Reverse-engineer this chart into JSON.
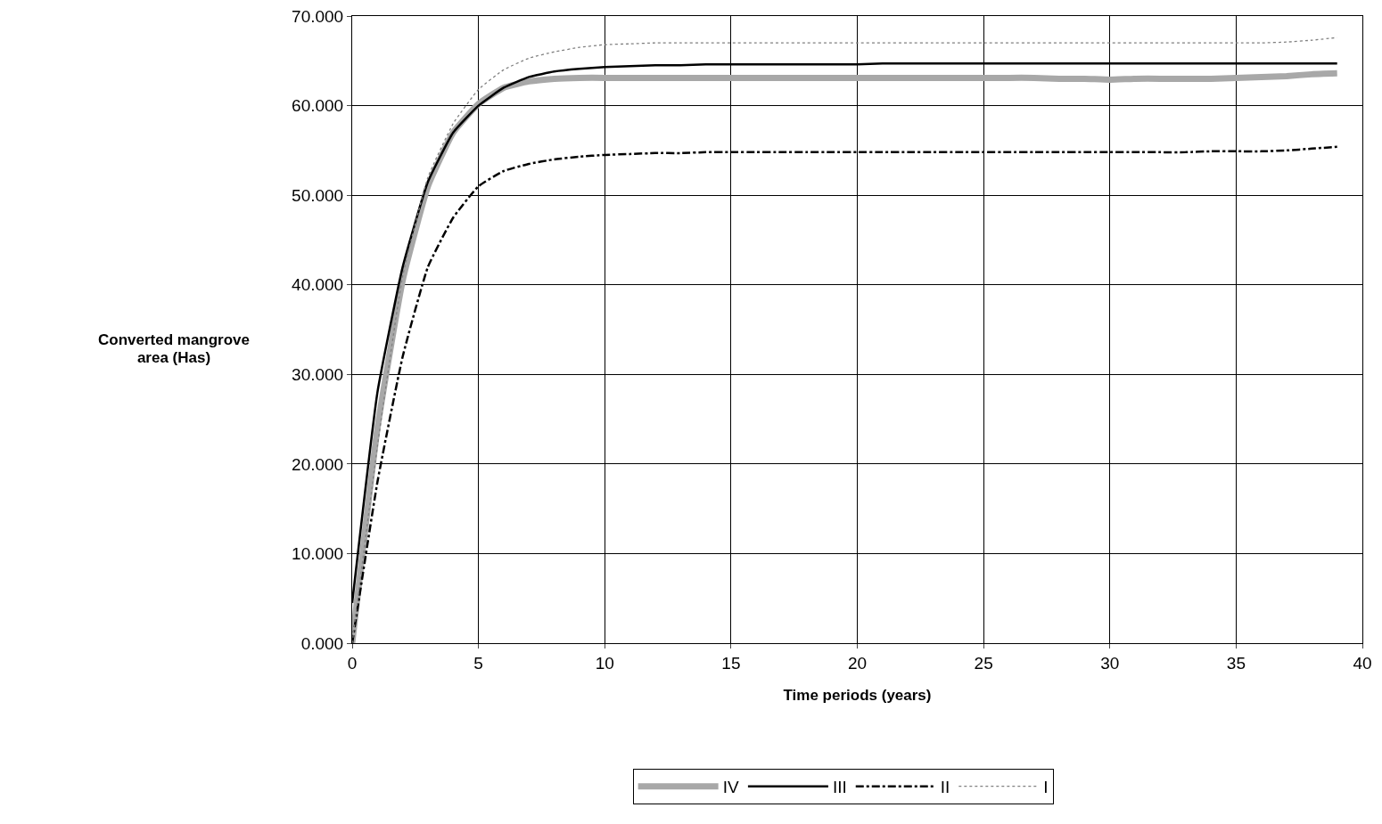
{
  "chart_data": {
    "type": "line",
    "xlabel": "Time periods (years)",
    "ylabel": "Converted mangrove area (Has)",
    "x": [
      0,
      1,
      2,
      3,
      4,
      5,
      6,
      7,
      8,
      9,
      10,
      11,
      12,
      13,
      14,
      15,
      16,
      17,
      18,
      19,
      20,
      21,
      22,
      23,
      24,
      25,
      26,
      27,
      28,
      29,
      30,
      31,
      32,
      33,
      34,
      35,
      36,
      37,
      38,
      39
    ],
    "series": [
      {
        "name": "IV",
        "color": "#a8a8a8",
        "line_style": "solid",
        "values": [
          0,
          24,
          40.5,
          51,
          57,
          60.2,
          62,
          62.7,
          63,
          63.1,
          63.1,
          63.1,
          63.1,
          63.1,
          63.1,
          63.1,
          63.1,
          63.1,
          63.1,
          63.1,
          63.1,
          63.1,
          63.1,
          63.1,
          63.1,
          63.1,
          63.1,
          63.1,
          63,
          63,
          62.9,
          63,
          63,
          63,
          63,
          63.1,
          63.2,
          63.3,
          63.5,
          63.6
        ]
      },
      {
        "name": "III",
        "color": "#000000",
        "line_style": "solid",
        "values": [
          4.5,
          28,
          42,
          51.5,
          57,
          60,
          62,
          63.2,
          63.8,
          64.1,
          64.3,
          64.4,
          64.5,
          64.5,
          64.6,
          64.6,
          64.6,
          64.6,
          64.6,
          64.6,
          64.6,
          64.7,
          64.7,
          64.7,
          64.7,
          64.7,
          64.7,
          64.7,
          64.7,
          64.7,
          64.7,
          64.7,
          64.7,
          64.7,
          64.7,
          64.7,
          64.7,
          64.7,
          64.7,
          64.7
        ]
      },
      {
        "name": "II",
        "color": "#000000",
        "line_style": "dashed",
        "values": [
          0,
          18,
          32,
          42,
          47.5,
          51,
          52.7,
          53.5,
          54,
          54.3,
          54.5,
          54.6,
          54.7,
          54.7,
          54.8,
          54.8,
          54.8,
          54.8,
          54.8,
          54.8,
          54.8,
          54.8,
          54.8,
          54.8,
          54.8,
          54.8,
          54.8,
          54.8,
          54.8,
          54.8,
          54.8,
          54.8,
          54.8,
          54.8,
          54.9,
          54.9,
          54.9,
          55,
          55.2,
          55.4
        ]
      },
      {
        "name": "I",
        "color": "#808080",
        "line_style": "dotted",
        "values": [
          0,
          22,
          41,
          52,
          58,
          61.8,
          64,
          65.3,
          66,
          66.5,
          66.8,
          66.9,
          67,
          67,
          67,
          67,
          67,
          67,
          67,
          67,
          67,
          67,
          67,
          67,
          67,
          67,
          67,
          67,
          67,
          67,
          67,
          67,
          67,
          67,
          67,
          67,
          67,
          67.1,
          67.3,
          67.6
        ]
      }
    ],
    "xlim": [
      0,
      40
    ],
    "xticks": [
      0,
      5,
      10,
      15,
      20,
      25,
      30,
      35,
      40
    ],
    "ylim": [
      0,
      70
    ],
    "yticks": [
      {
        "value": 0,
        "label": "0.000"
      },
      {
        "value": 10,
        "label": "10.000"
      },
      {
        "value": 20,
        "label": "20.000"
      },
      {
        "value": 30,
        "label": "30.000"
      },
      {
        "value": 40,
        "label": "40.000"
      },
      {
        "value": 50,
        "label": "50.000"
      },
      {
        "value": 60,
        "label": "60.000"
      },
      {
        "value": 70,
        "label": "70.000"
      }
    ],
    "grid": true,
    "legend": "bottom",
    "marker": "none"
  }
}
